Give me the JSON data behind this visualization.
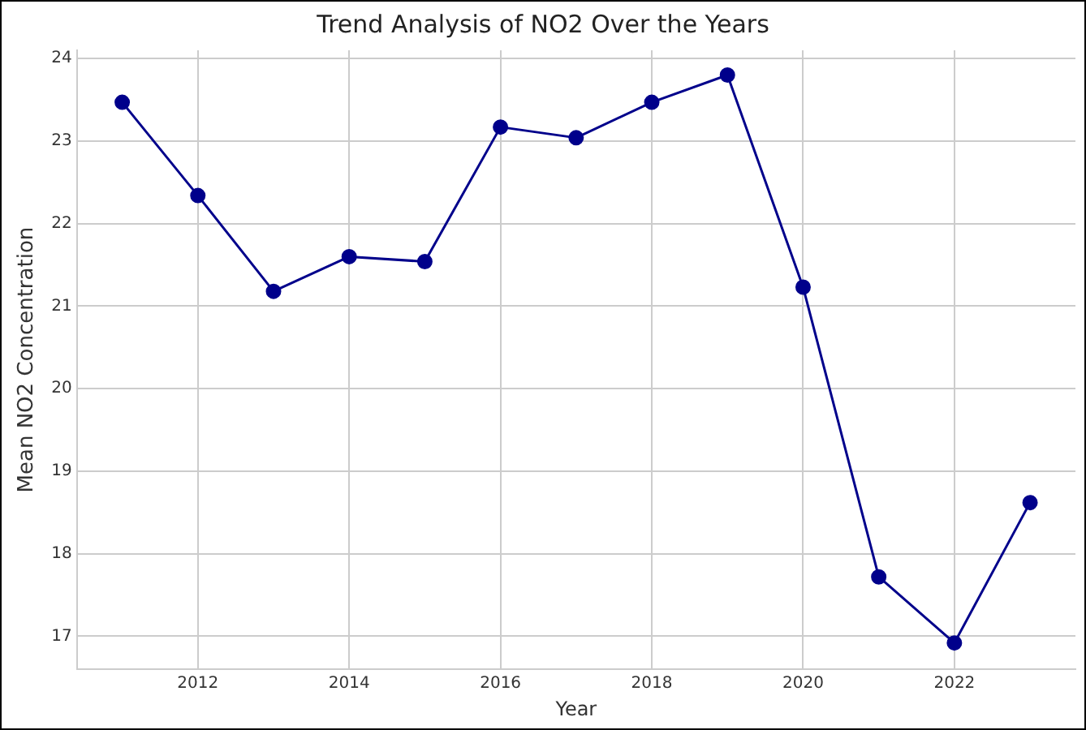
{
  "chart_data": {
    "type": "line",
    "title": "Trend Analysis of NO2 Over the Years",
    "xlabel": "Year",
    "ylabel": "Mean NO2 Concentration",
    "x": [
      2011,
      2012,
      2013,
      2014,
      2015,
      2016,
      2017,
      2018,
      2019,
      2020,
      2021,
      2022,
      2023
    ],
    "series": [
      {
        "color": "#00008b",
        "values": [
          23.47,
          22.34,
          21.18,
          21.6,
          21.54,
          23.17,
          23.04,
          23.47,
          23.8,
          21.23,
          17.72,
          16.92,
          18.62
        ]
      }
    ],
    "xlim": [
      2010.4,
      2023.6
    ],
    "xticks": [
      2012,
      2014,
      2016,
      2018,
      2020,
      2022
    ],
    "ylim": [
      16.6,
      24.1
    ],
    "yticks": [
      17,
      18,
      19,
      20,
      21,
      22,
      23,
      24
    ],
    "grid": true,
    "legend": false,
    "marker": "circle",
    "line_style": "solid"
  }
}
